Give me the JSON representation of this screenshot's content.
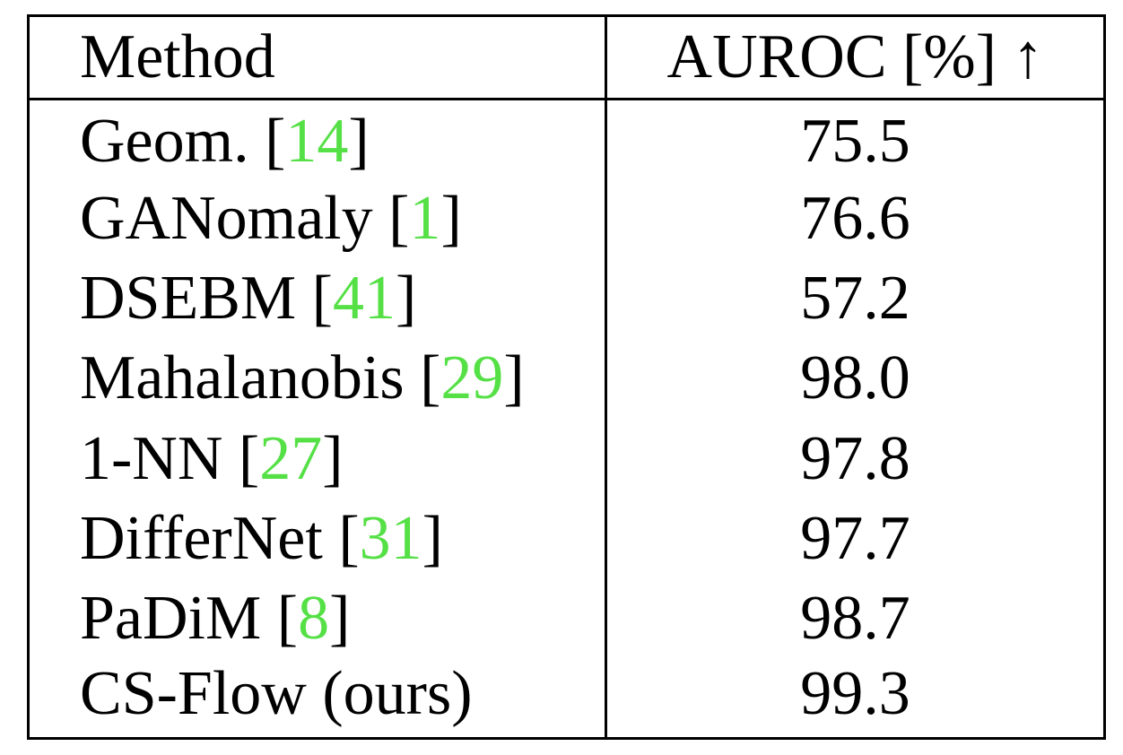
{
  "table": {
    "headers": {
      "method": "Method",
      "metric": "AUROC [%] ↑"
    },
    "rows": [
      {
        "method": "Geom.",
        "ref": "14",
        "auroc": "75.5",
        "bold": false
      },
      {
        "method": "GANomaly",
        "ref": "1",
        "auroc": "76.6",
        "bold": false
      },
      {
        "method": "DSEBM",
        "ref": "41",
        "auroc": "57.2",
        "bold": false
      },
      {
        "method": "Mahalanobis",
        "ref": "29",
        "auroc": "98.0",
        "bold": false
      },
      {
        "method": "1-NN",
        "ref": "27",
        "auroc": "97.8",
        "bold": false
      },
      {
        "method": "DifferNet",
        "ref": "31",
        "auroc": "97.7",
        "bold": false
      },
      {
        "method": "PaDiM",
        "ref": "8",
        "auroc": "98.7",
        "bold": false
      },
      {
        "method": "CS-Flow (ours)",
        "ref": "",
        "auroc": "99.3",
        "bold": true
      }
    ]
  },
  "colors": {
    "reference_link": "#55e046",
    "text": "#000000"
  }
}
